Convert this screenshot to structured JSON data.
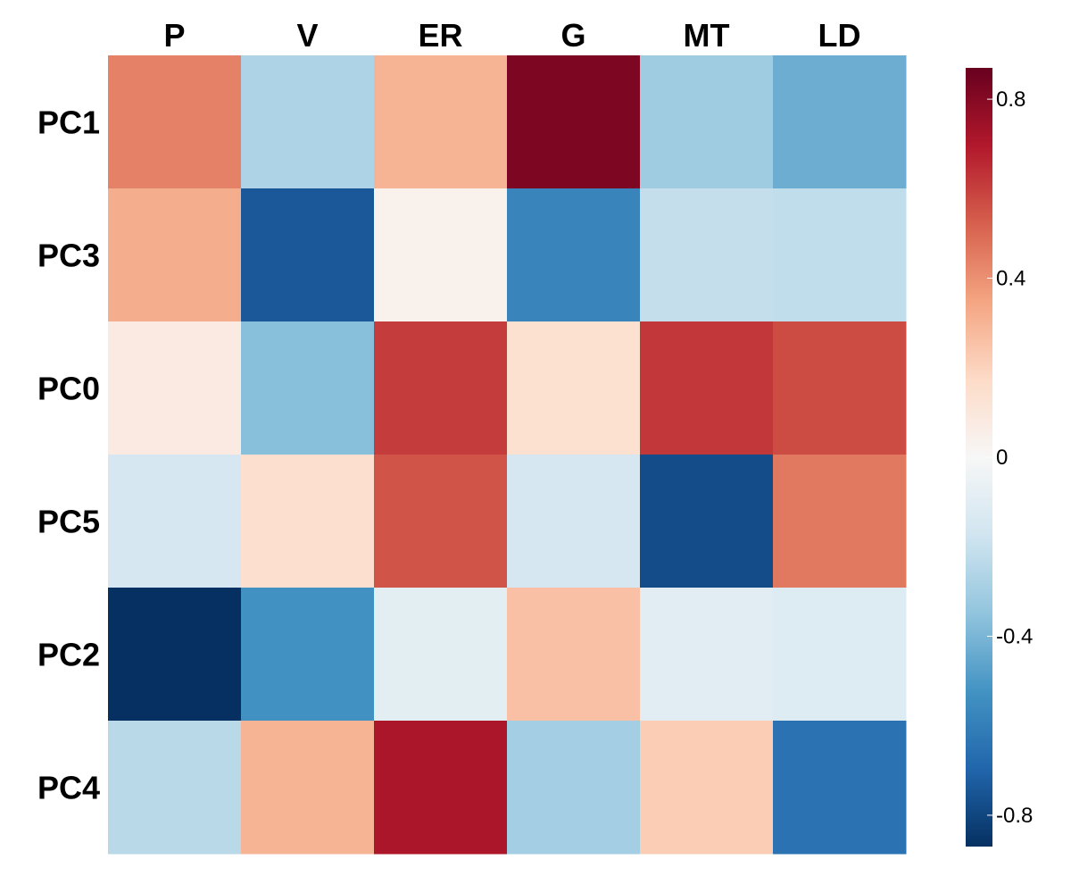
{
  "chart_data": {
    "type": "heatmap",
    "columns": [
      "P",
      "V",
      "ER",
      "G",
      "MT",
      "LD"
    ],
    "rows": [
      "PC1",
      "PC3",
      "PC0",
      "PC5",
      "PC2",
      "PC4"
    ],
    "values": [
      [
        0.44,
        -0.27,
        0.3,
        0.82,
        -0.31,
        -0.43
      ],
      [
        0.32,
        -0.74,
        0.04,
        -0.58,
        -0.21,
        -0.22
      ],
      [
        0.08,
        -0.37,
        0.61,
        0.14,
        0.62,
        0.57
      ],
      [
        -0.15,
        0.15,
        0.55,
        -0.15,
        -0.78,
        0.46
      ],
      [
        -0.87,
        -0.53,
        -0.09,
        0.26,
        -0.1,
        -0.12
      ],
      [
        -0.24,
        0.3,
        0.71,
        -0.3,
        0.22,
        -0.65
      ]
    ],
    "colorbar": {
      "min": -0.87,
      "max": 0.87,
      "ticks": [
        0.8,
        0.4,
        0,
        -0.4,
        -0.8
      ],
      "tick_labels": [
        "0.8",
        "0.4",
        "0",
        "-0.4",
        "-0.8"
      ],
      "colormap": "RdBu_r",
      "colors": [
        "#053061",
        "#2166ac",
        "#4393c3",
        "#92c5de",
        "#d1e5f0",
        "#f7f7f7",
        "#fddbc7",
        "#f4a582",
        "#d6604d",
        "#b2182b",
        "#67001f"
      ]
    },
    "title": "",
    "xlabel": "",
    "ylabel": ""
  }
}
